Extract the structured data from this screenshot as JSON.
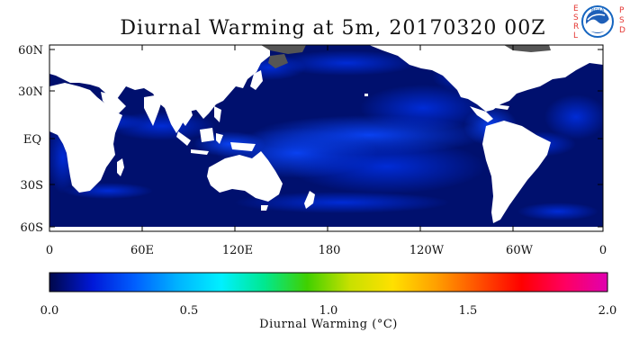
{
  "title": "Diurnal Warming at 5m, 20170320 00Z",
  "logo": {
    "esrl_letters": [
      "E",
      "S",
      "R",
      "L"
    ],
    "psd_letters": [
      "P",
      "S",
      "D"
    ],
    "noaa_text": "NOAA",
    "colors": {
      "esrl": "#e53935",
      "noaa_ring": "#1565c0"
    }
  },
  "map": {
    "lat_labels": [
      "60N",
      "30N",
      "EQ",
      "30S",
      "60S"
    ],
    "lon_labels": [
      "0",
      "60E",
      "120E",
      "180",
      "120W",
      "60W",
      "0"
    ],
    "ocean_color": "#00106e",
    "land_color": "#ffffff",
    "ice_color": "#555555"
  },
  "colorbar": {
    "tick_labels": [
      "0.0",
      "0.5",
      "1.0",
      "1.5",
      "2.0"
    ],
    "label": "Diurnal Warming (°C)",
    "colors": [
      "#00084a",
      "#0018d8",
      "#0060ff",
      "#00b4ff",
      "#00f0ff",
      "#00e890",
      "#40d000",
      "#c8e000",
      "#ffe000",
      "#ffa000",
      "#ff5000",
      "#ff0000",
      "#ff0060",
      "#e000b0"
    ]
  }
}
